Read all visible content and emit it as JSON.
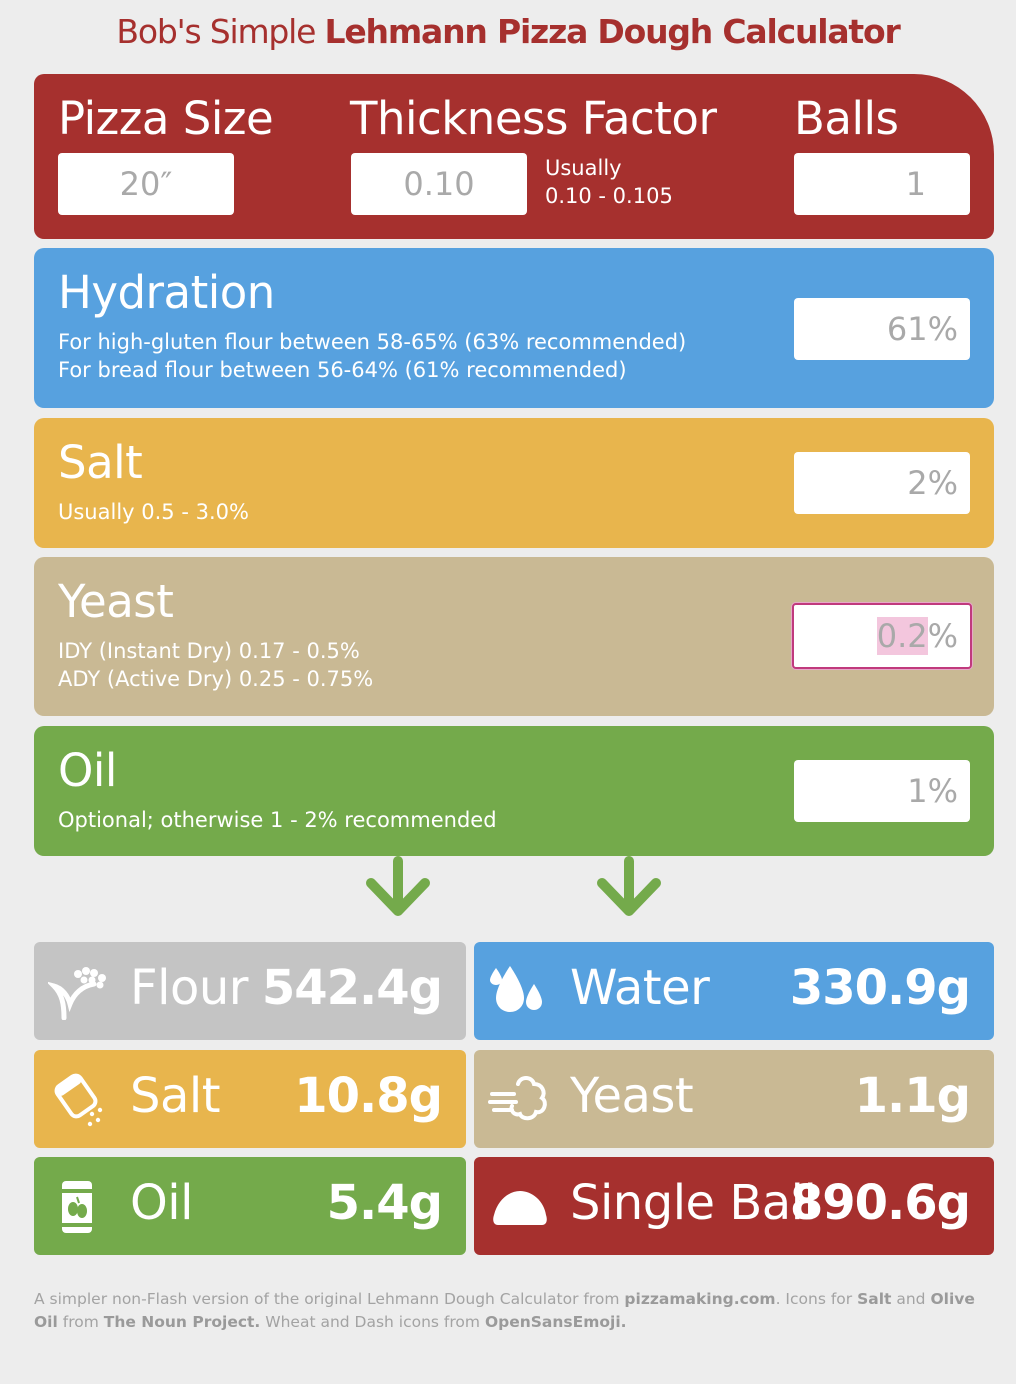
{
  "title": {
    "light": "Bob's Simple ",
    "bold": "Lehmann Pizza Dough Calculator"
  },
  "top": {
    "pizza_size_label": "Pizza Size",
    "pizza_size_value": "20″",
    "thickness_label": "Thickness Factor",
    "thickness_value": "0.10",
    "thickness_hint_1": "Usually",
    "thickness_hint_2": "0.10 - 0.105",
    "balls_label": "Balls",
    "balls_value": "1"
  },
  "hydration": {
    "label": "Hydration",
    "desc_1": "For high-gluten flour between 58-65% (63% recommended)",
    "desc_2": "For bread flour between 56-64% (61% recommended)",
    "value": "61",
    "suffix": "%"
  },
  "salt": {
    "label": "Salt",
    "desc_1": "Usually 0.5 - 3.0%",
    "value": "2",
    "suffix": "%"
  },
  "yeast": {
    "label": "Yeast",
    "desc_1": "IDY (Instant Dry) 0.17 - 0.5%",
    "desc_2": "ADY (Active Dry) 0.25 - 0.75%",
    "value": "0.2",
    "suffix": "%"
  },
  "oil": {
    "label": "Oil",
    "desc_1": "Optional; otherwise 1 - 2% recommended",
    "value": "1",
    "suffix": "%"
  },
  "results": {
    "flour": {
      "label": "Flour",
      "value": "542.4g",
      "icon": "wheat-icon"
    },
    "water": {
      "label": "Water",
      "value": "330.9g",
      "icon": "water-drops-icon"
    },
    "salt": {
      "label": "Salt",
      "value": "10.8g",
      "icon": "salt-shaker-icon"
    },
    "yeast": {
      "label": "Yeast",
      "value": "1.1g",
      "icon": "dash-cloud-icon"
    },
    "oil": {
      "label": "Oil",
      "value": "5.4g",
      "icon": "olive-oil-icon"
    },
    "ball": {
      "label": "Single Ball",
      "value": "890.6g",
      "icon": "dough-ball-icon"
    }
  },
  "footer": {
    "t1": "A simpler non-Flash version of the original Lehmann Dough Calculator from ",
    "l1": "pizzamaking.com",
    "t2": ". Icons for ",
    "l2": "Salt",
    "t3": " and ",
    "l3": "Olive Oil",
    "t4": " from ",
    "l4": "The Noun Project.",
    "t5": " Wheat and Dash icons from ",
    "l5": "OpenSansEmoji."
  },
  "colors": {
    "red": "#a6302e",
    "blue": "#57a1df",
    "yellow": "#e8b54d",
    "tan": "#c9b994",
    "green": "#74aa4b",
    "gray": "#c4c4c4",
    "background": "#ededed",
    "focus_border": "#c03a7d"
  }
}
